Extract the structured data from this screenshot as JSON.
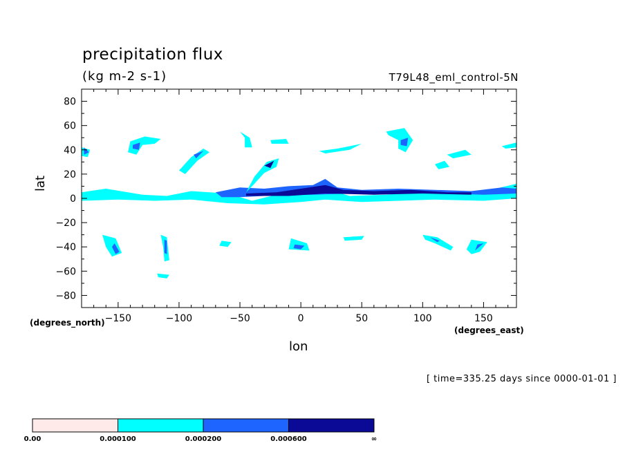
{
  "chart_data": {
    "type": "heatmap",
    "title": "precipitation flux",
    "units": "(kg m-2 s-1)",
    "run_id": "T79L48_eml_control-5N",
    "time_info": "[ time=335.25 days since 0000-01-01 ]",
    "xlabel": "lon",
    "ylabel": "lat",
    "x_units": "(degrees_east)",
    "y_units": "(degrees_north)",
    "xlim": [
      -180,
      177
    ],
    "ylim": [
      -90,
      90
    ],
    "x_ticks": [
      -150,
      -100,
      -50,
      0,
      50,
      100,
      150
    ],
    "y_ticks": [
      80,
      60,
      40,
      20,
      0,
      -20,
      -40,
      -60,
      -80
    ],
    "contour_levels": [
      "0.00",
      "0.000100",
      "0.000200",
      "0.000600",
      "∞"
    ],
    "level_colors": [
      "#ffeaea",
      "#00ffff",
      "#1e64ff",
      "#0a0a96"
    ],
    "features": [
      {
        "level": 1,
        "points": [
          [
            -180,
            5
          ],
          [
            -160,
            8
          ],
          [
            -130,
            3
          ],
          [
            -110,
            2
          ],
          [
            -90,
            6
          ],
          [
            -60,
            4
          ],
          [
            -40,
            -2
          ],
          [
            -20,
            3
          ],
          [
            0,
            6
          ],
          [
            20,
            8
          ],
          [
            40,
            2
          ],
          [
            70,
            3
          ],
          [
            100,
            6
          ],
          [
            130,
            4
          ],
          [
            160,
            8
          ],
          [
            177,
            12
          ],
          [
            177,
            0
          ],
          [
            150,
            -2
          ],
          [
            110,
            -1
          ],
          [
            80,
            -2
          ],
          [
            50,
            -3
          ],
          [
            20,
            -1
          ],
          [
            0,
            -3
          ],
          [
            -30,
            -5
          ],
          [
            -60,
            -4
          ],
          [
            -90,
            -1
          ],
          [
            -120,
            -2
          ],
          [
            -150,
            -1
          ],
          [
            -180,
            -2
          ]
        ]
      },
      {
        "level": 2,
        "points": [
          [
            -70,
            5
          ],
          [
            -50,
            9
          ],
          [
            -30,
            8
          ],
          [
            -10,
            10
          ],
          [
            10,
            11
          ],
          [
            20,
            16
          ],
          [
            30,
            9
          ],
          [
            50,
            7
          ],
          [
            80,
            8
          ],
          [
            110,
            7
          ],
          [
            140,
            6
          ],
          [
            165,
            9
          ],
          [
            177,
            8
          ],
          [
            177,
            4
          ],
          [
            150,
            3
          ],
          [
            120,
            4
          ],
          [
            80,
            4
          ],
          [
            40,
            4
          ],
          [
            10,
            3
          ],
          [
            -10,
            3
          ],
          [
            -30,
            2
          ],
          [
            -50,
            1
          ],
          [
            -65,
            1
          ]
        ]
      },
      {
        "level": 3,
        "points": [
          [
            -45,
            4
          ],
          [
            -20,
            5
          ],
          [
            0,
            8
          ],
          [
            20,
            11
          ],
          [
            35,
            7
          ],
          [
            60,
            6
          ],
          [
            90,
            7
          ],
          [
            120,
            5
          ],
          [
            140,
            5
          ],
          [
            140,
            3
          ],
          [
            100,
            4
          ],
          [
            60,
            3
          ],
          [
            20,
            4
          ],
          [
            -10,
            2
          ],
          [
            -45,
            2
          ]
        ]
      },
      {
        "level": 1,
        "points": [
          [
            -180,
            42
          ],
          [
            -173,
            40
          ],
          [
            -175,
            34
          ],
          [
            -180,
            35
          ]
        ]
      },
      {
        "level": 2,
        "points": [
          [
            -178,
            42
          ],
          [
            -174,
            38
          ],
          [
            -178,
            36
          ]
        ]
      },
      {
        "level": 1,
        "points": [
          [
            -140,
            47
          ],
          [
            -128,
            51
          ],
          [
            -115,
            49
          ],
          [
            -120,
            45
          ],
          [
            -130,
            44
          ],
          [
            -135,
            36
          ],
          [
            -142,
            38
          ]
        ]
      },
      {
        "level": 2,
        "points": [
          [
            -138,
            44
          ],
          [
            -132,
            46
          ],
          [
            -133,
            40
          ],
          [
            -138,
            41
          ]
        ]
      },
      {
        "level": 1,
        "points": [
          [
            -100,
            23
          ],
          [
            -90,
            34
          ],
          [
            -80,
            41
          ],
          [
            -75,
            38
          ],
          [
            -85,
            31
          ],
          [
            -95,
            20
          ]
        ]
      },
      {
        "level": 2,
        "points": [
          [
            -88,
            36
          ],
          [
            -80,
            39
          ],
          [
            -86,
            33
          ]
        ]
      },
      {
        "level": 1,
        "points": [
          [
            -45,
            5
          ],
          [
            -38,
            18
          ],
          [
            -28,
            30
          ],
          [
            -18,
            33
          ],
          [
            -20,
            26
          ],
          [
            -30,
            21
          ],
          [
            -40,
            10
          ]
        ]
      },
      {
        "level": 3,
        "points": [
          [
            -30,
            27
          ],
          [
            -22,
            31
          ],
          [
            -25,
            25
          ]
        ]
      },
      {
        "level": 1,
        "points": [
          [
            -50,
            55
          ],
          [
            -42,
            50
          ],
          [
            -40,
            42
          ],
          [
            -46,
            42
          ],
          [
            -46,
            50
          ]
        ]
      },
      {
        "level": 1,
        "points": [
          [
            -25,
            48
          ],
          [
            -12,
            49
          ],
          [
            -10,
            45
          ],
          [
            -24,
            45
          ]
        ]
      },
      {
        "level": 1,
        "points": [
          [
            70,
            55
          ],
          [
            85,
            58
          ],
          [
            92,
            48
          ],
          [
            86,
            38
          ],
          [
            80,
            41
          ],
          [
            80,
            48
          ],
          [
            72,
            52
          ]
        ]
      },
      {
        "level": 2,
        "points": [
          [
            82,
            48
          ],
          [
            88,
            50
          ],
          [
            87,
            43
          ],
          [
            82,
            44
          ]
        ]
      },
      {
        "level": 1,
        "points": [
          [
            15,
            39
          ],
          [
            30,
            41
          ],
          [
            50,
            45
          ],
          [
            40,
            40
          ],
          [
            20,
            37
          ]
        ]
      },
      {
        "level": 1,
        "points": [
          [
            110,
            28
          ],
          [
            118,
            31
          ],
          [
            122,
            26
          ],
          [
            113,
            24
          ]
        ]
      },
      {
        "level": 1,
        "points": [
          [
            120,
            36
          ],
          [
            135,
            40
          ],
          [
            140,
            36
          ],
          [
            125,
            33
          ]
        ]
      },
      {
        "level": 1,
        "points": [
          [
            165,
            43
          ],
          [
            177,
            46
          ],
          [
            177,
            42
          ],
          [
            168,
            41
          ]
        ]
      },
      {
        "level": 1,
        "points": [
          [
            -163,
            -30
          ],
          [
            -152,
            -33
          ],
          [
            -147,
            -45
          ],
          [
            -155,
            -48
          ],
          [
            -160,
            -40
          ]
        ]
      },
      {
        "level": 2,
        "points": [
          [
            -153,
            -37
          ],
          [
            -149,
            -44
          ],
          [
            -152,
            -46
          ],
          [
            -155,
            -40
          ]
        ]
      },
      {
        "level": 1,
        "points": [
          [
            -115,
            -30
          ],
          [
            -110,
            -32
          ],
          [
            -108,
            -51
          ],
          [
            -112,
            -52
          ],
          [
            -113,
            -40
          ]
        ]
      },
      {
        "level": 2,
        "points": [
          [
            -112,
            -34
          ],
          [
            -110,
            -35
          ],
          [
            -110,
            -46
          ],
          [
            -112,
            -45
          ]
        ]
      },
      {
        "level": 1,
        "points": [
          [
            -65,
            -35
          ],
          [
            -57,
            -36
          ],
          [
            -60,
            -40
          ],
          [
            -67,
            -39
          ]
        ]
      },
      {
        "level": 1,
        "points": [
          [
            -8,
            -33
          ],
          [
            5,
            -37
          ],
          [
            7,
            -43
          ],
          [
            -10,
            -42
          ]
        ]
      },
      {
        "level": 2,
        "points": [
          [
            -5,
            -38
          ],
          [
            3,
            -39
          ],
          [
            0,
            -42
          ],
          [
            -6,
            -41
          ]
        ]
      },
      {
        "level": 1,
        "points": [
          [
            35,
            -32
          ],
          [
            52,
            -31
          ],
          [
            50,
            -34
          ],
          [
            36,
            -35
          ]
        ]
      },
      {
        "level": 1,
        "points": [
          [
            100,
            -30
          ],
          [
            112,
            -32
          ],
          [
            125,
            -40
          ],
          [
            123,
            -43
          ],
          [
            110,
            -37
          ],
          [
            102,
            -34
          ]
        ]
      },
      {
        "level": 2,
        "points": [
          [
            106,
            -32
          ],
          [
            114,
            -35
          ],
          [
            112,
            -36
          ]
        ]
      },
      {
        "level": 1,
        "points": [
          [
            140,
            -34
          ],
          [
            153,
            -36
          ],
          [
            147,
            -44
          ],
          [
            140,
            -46
          ],
          [
            136,
            -42
          ]
        ]
      },
      {
        "level": 2,
        "points": [
          [
            145,
            -38
          ],
          [
            150,
            -37
          ],
          [
            143,
            -43
          ]
        ]
      },
      {
        "level": 1,
        "points": [
          [
            -118,
            -62
          ],
          [
            -108,
            -63
          ],
          [
            -110,
            -66
          ],
          [
            -117,
            -65
          ]
        ]
      }
    ]
  }
}
